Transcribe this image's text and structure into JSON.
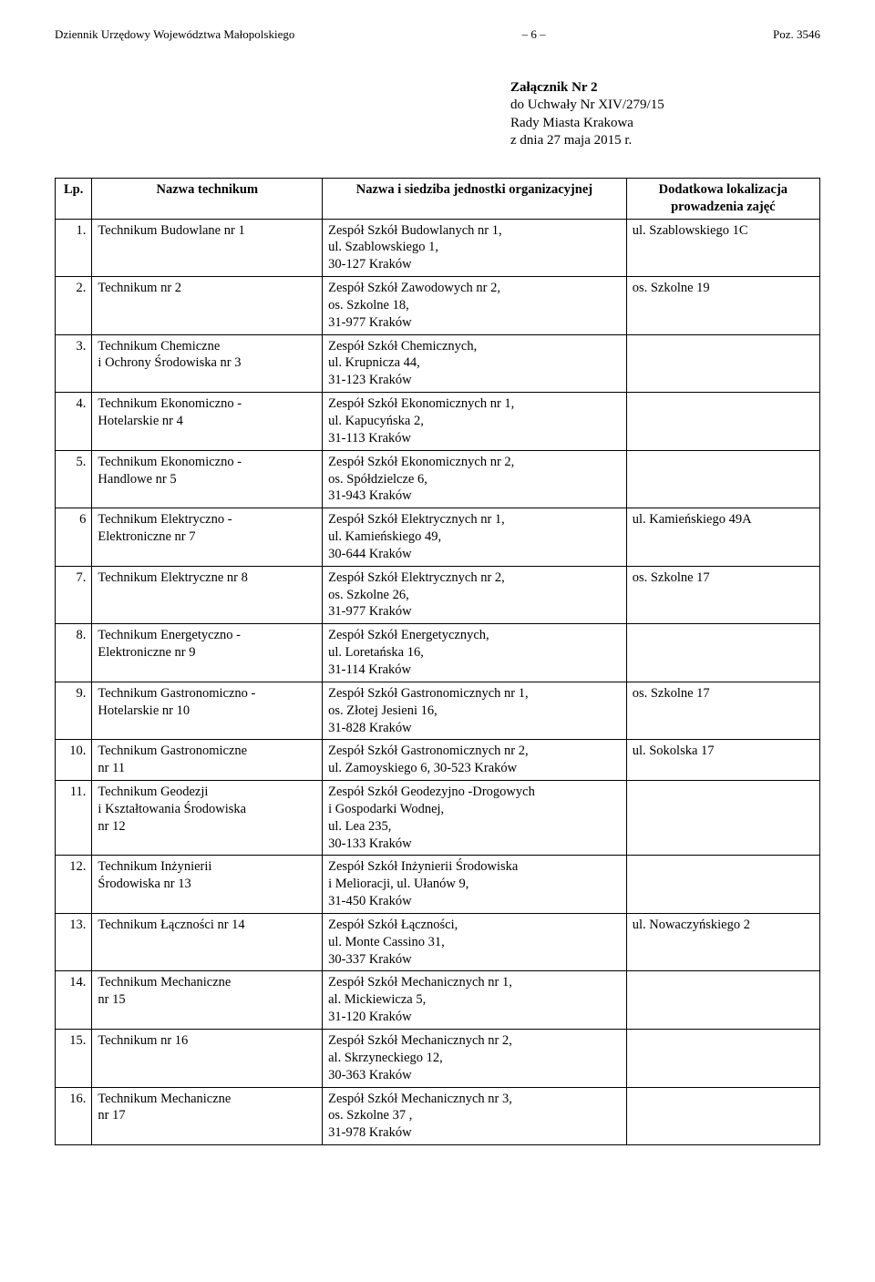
{
  "header": {
    "left": "Dziennik Urzędowy Województwa Małopolskiego",
    "center": "– 6 –",
    "right": "Poz. 3546"
  },
  "attachment": {
    "title": "Załącznik Nr 2",
    "line2": "do Uchwały Nr XIV/279/15",
    "line3": "Rady Miasta Krakowa",
    "line4": "z dnia 27 maja 2015 r."
  },
  "table": {
    "headers": {
      "lp": "Lp.",
      "name": "Nazwa technikum",
      "org": "Nazwa i siedziba jednostki organizacyjnej",
      "loc": "Dodatkowa lokalizacja prowadzenia zajęć"
    },
    "rows": [
      {
        "lp": "1.",
        "name": "Technikum Budowlane nr 1",
        "org": "Zespół Szkół Budowlanych nr 1,\nul. Szablowskiego 1,\n30-127 Kraków",
        "loc": "ul. Szablowskiego 1C"
      },
      {
        "lp": "2.",
        "name": "Technikum nr 2",
        "org": "Zespół Szkół Zawodowych nr 2,\nos. Szkolne 18,\n31-977 Kraków",
        "loc": "os. Szkolne 19"
      },
      {
        "lp": "3.",
        "name": "Technikum Chemiczne\ni Ochrony Środowiska nr 3",
        "org": "Zespół Szkół Chemicznych,\nul. Krupnicza 44,\n31-123 Kraków",
        "loc": ""
      },
      {
        "lp": "4.",
        "name": "Technikum Ekonomiczno -\nHotelarskie nr 4",
        "org": "Zespół Szkół Ekonomicznych nr 1,\nul. Kapucyńska 2,\n31-113 Kraków",
        "loc": ""
      },
      {
        "lp": "5.",
        "name": "Technikum Ekonomiczno -\nHandlowe nr 5",
        "org": "Zespół Szkół Ekonomicznych nr 2,\nos. Spółdzielcze 6,\n31-943 Kraków",
        "loc": ""
      },
      {
        "lp": "6",
        "name": "Technikum Elektryczno -\nElektroniczne nr 7",
        "org": "Zespół Szkół Elektrycznych nr 1,\nul. Kamieńskiego 49,\n30-644 Kraków",
        "loc": "ul. Kamieńskiego 49A"
      },
      {
        "lp": "7.",
        "name": "Technikum Elektryczne nr 8",
        "org": "Zespół Szkół Elektrycznych nr 2,\nos. Szkolne 26,\n31-977 Kraków",
        "loc": "os. Szkolne 17"
      },
      {
        "lp": "8.",
        "name": "Technikum Energetyczno -\nElektroniczne nr 9",
        "org": "Zespół Szkół Energetycznych,\nul. Loretańska 16,\n31-114 Kraków",
        "loc": ""
      },
      {
        "lp": "9.",
        "name": "Technikum Gastronomiczno -\nHotelarskie nr 10",
        "org": "Zespół Szkół Gastronomicznych nr 1,\nos. Złotej Jesieni 16,\n31-828 Kraków",
        "loc": "os. Szkolne 17"
      },
      {
        "lp": "10.",
        "name": "Technikum Gastronomiczne\nnr 11",
        "org": "Zespół Szkół Gastronomicznych nr 2,\nul. Zamoyskiego 6, 30-523 Kraków",
        "loc": "ul. Sokolska 17"
      },
      {
        "lp": "11.",
        "name": "Technikum Geodezji\ni Kształtowania Środowiska\nnr 12",
        "org": "Zespół Szkół Geodezyjno -Drogowych\ni Gospodarki Wodnej,\nul. Lea 235,\n30-133 Kraków",
        "loc": ""
      },
      {
        "lp": "12.",
        "name": "Technikum Inżynierii\nŚrodowiska nr 13",
        "org": "Zespół Szkół Inżynierii Środowiska\ni Melioracji, ul. Ułanów 9,\n31-450 Kraków",
        "loc": ""
      },
      {
        "lp": "13.",
        "name": "Technikum Łączności nr 14",
        "org": "Zespół Szkół Łączności,\nul. Monte Cassino 31,\n30-337 Kraków",
        "loc": "ul. Nowaczyńskiego 2"
      },
      {
        "lp": "14.",
        "name": "Technikum Mechaniczne\nnr 15",
        "org": "Zespół Szkół Mechanicznych nr 1,\nal. Mickiewicza 5,\n31-120 Kraków",
        "loc": ""
      },
      {
        "lp": "15.",
        "name": "Technikum nr 16",
        "org": "Zespół Szkół Mechanicznych nr 2,\nal. Skrzyneckiego 12,\n30-363 Kraków",
        "loc": ""
      },
      {
        "lp": "16.",
        "name": "Technikum Mechaniczne\nnr 17",
        "org": "Zespół Szkół Mechanicznych nr 3,\nos. Szkolne 37 ,\n31-978 Kraków",
        "loc": ""
      }
    ]
  }
}
